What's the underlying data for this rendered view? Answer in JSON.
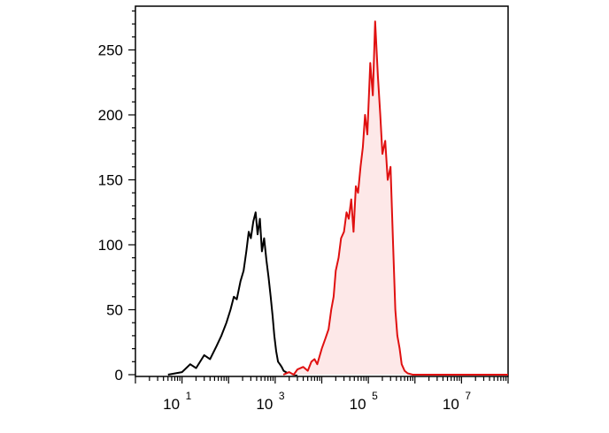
{
  "chart_data": {
    "type": "area",
    "x_scale": "log",
    "xlim": [
      1,
      100000000
    ],
    "ylim": [
      0,
      280
    ],
    "grid": false,
    "y_ticks": [
      0,
      50,
      100,
      150,
      200,
      250
    ],
    "y_tick_labels": [
      "0",
      "50",
      "100",
      "150",
      "200",
      "250"
    ],
    "x_ticks": [
      10,
      1000,
      100000,
      10000000
    ],
    "x_tick_labels": [
      {
        "base": "10",
        "exp": "1"
      },
      {
        "base": "10",
        "exp": "3"
      },
      {
        "base": "10",
        "exp": "5"
      },
      {
        "base": "10",
        "exp": "7"
      }
    ],
    "series": [
      {
        "color": "#000000",
        "fill": "none",
        "x": [
          5,
          10,
          15,
          20,
          30,
          40,
          55,
          70,
          90,
          110,
          130,
          150,
          180,
          210,
          240,
          270,
          300,
          340,
          380,
          420,
          470,
          520,
          580,
          650,
          720,
          800,
          880,
          960,
          1050,
          1150,
          1260,
          1380,
          1520,
          1700,
          1900,
          2100,
          2500,
          3000
        ],
        "y": [
          0,
          2,
          8,
          5,
          15,
          12,
          22,
          30,
          40,
          50,
          60,
          58,
          72,
          80,
          95,
          110,
          105,
          118,
          125,
          108,
          120,
          95,
          105,
          88,
          75,
          60,
          45,
          30,
          18,
          10,
          8,
          6,
          3,
          2,
          1,
          1,
          0,
          0
        ]
      },
      {
        "color": "#e01010",
        "fill": "#fde8e8",
        "x": [
          1500,
          2000,
          2500,
          3000,
          4000,
          5000,
          6000,
          7000,
          8000,
          10000,
          12000,
          14000,
          16000,
          18000,
          20000,
          23000,
          26000,
          30000,
          34000,
          38000,
          43000,
          48000,
          54000,
          60000,
          68000,
          76000,
          85000,
          95000,
          110000,
          125000,
          140000,
          160000,
          180000,
          200000,
          230000,
          260000,
          300000,
          340000,
          380000,
          420000,
          470000,
          520000,
          600000,
          700000,
          900000,
          1200000,
          100000000
        ],
        "y": [
          0,
          2,
          0,
          4,
          6,
          3,
          10,
          12,
          8,
          20,
          28,
          35,
          50,
          60,
          80,
          90,
          105,
          110,
          125,
          120,
          135,
          110,
          145,
          140,
          160,
          175,
          200,
          185,
          240,
          215,
          272,
          230,
          200,
          170,
          180,
          150,
          160,
          100,
          50,
          30,
          20,
          8,
          3,
          1,
          0,
          0,
          0
        ]
      }
    ]
  }
}
